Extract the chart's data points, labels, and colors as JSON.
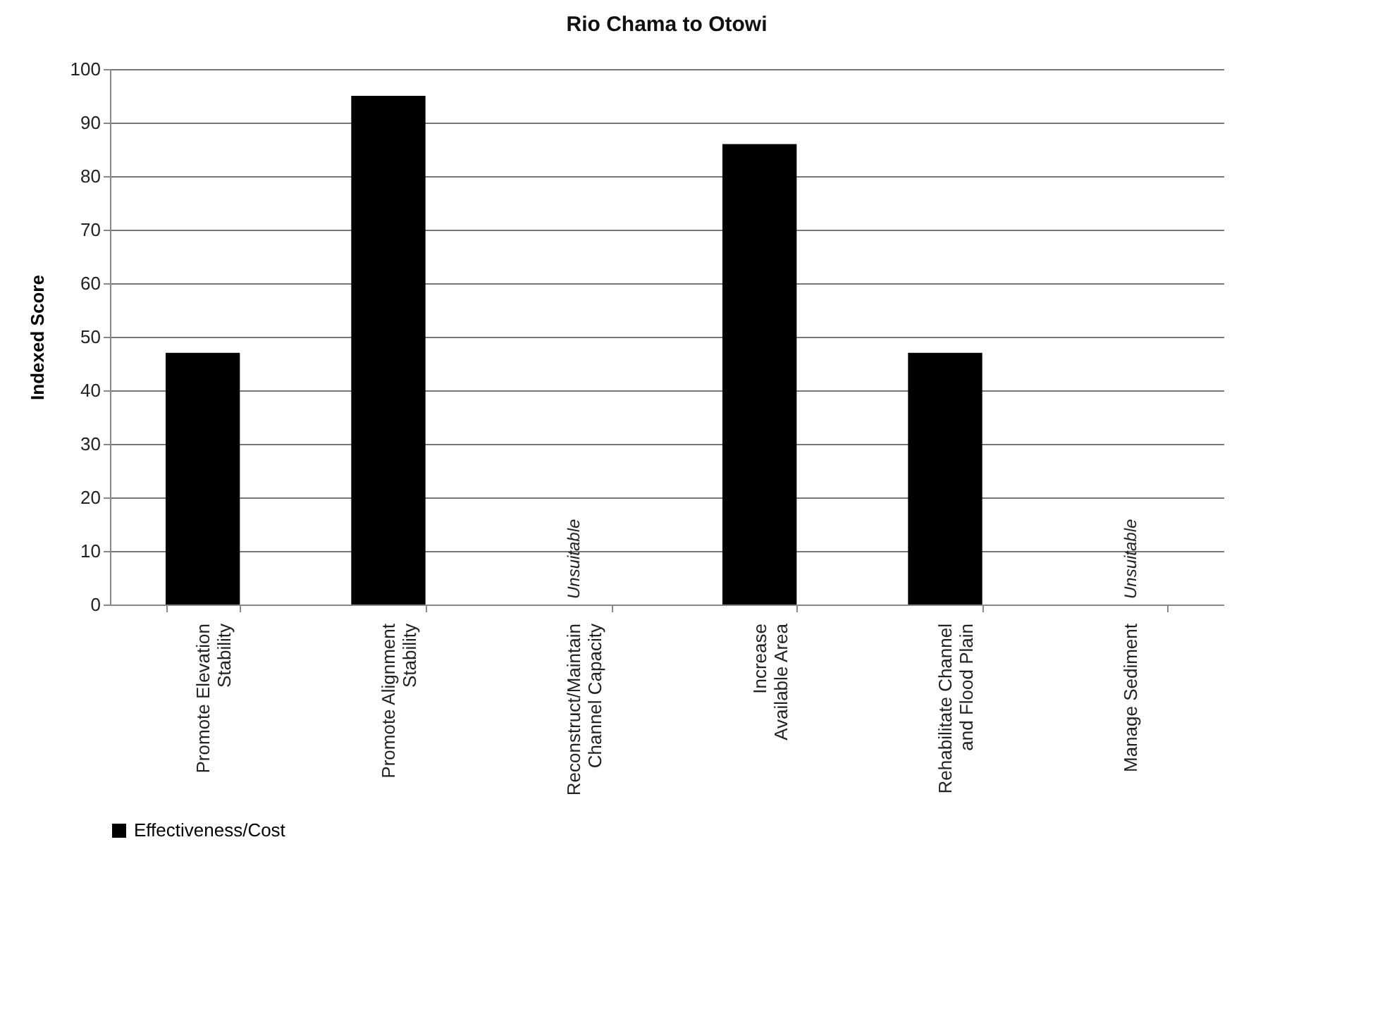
{
  "chart_data": {
    "type": "bar",
    "title": "Rio Chama to Otowi",
    "ylabel": "Indexed Score",
    "categories": [
      "Promote Elevation Stability",
      "Promote Alignment Stability",
      "Reconstruct/Maintain Channel Capacity",
      "Increase Available Area",
      "Rehabilitate Channel and Flood Plain",
      "Manage Sediment"
    ],
    "series": [
      {
        "name": "Effectiveness/Cost",
        "color": "#000000",
        "values": [
          47,
          95,
          null,
          86,
          47,
          null
        ]
      }
    ],
    "ylim": [
      0,
      100
    ],
    "yticks": [
      0,
      10,
      20,
      30,
      40,
      50,
      60,
      70,
      80,
      90,
      100
    ],
    "grid": "y",
    "legend": "bottom",
    "annotations": [
      "Unsuitable",
      "Unsuitable"
    ]
  }
}
